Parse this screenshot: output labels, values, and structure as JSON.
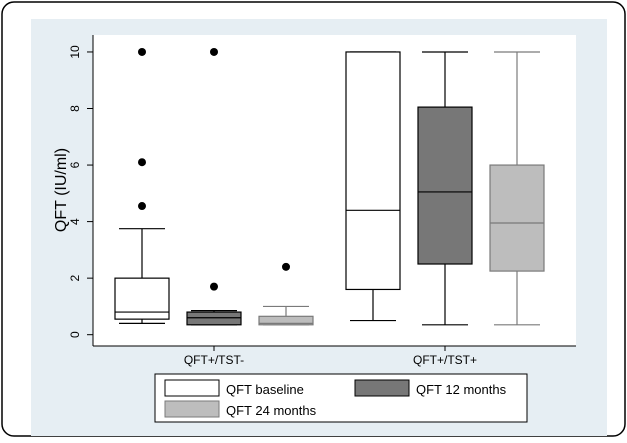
{
  "chart_data": {
    "type": "box",
    "title": "",
    "xlabel": "",
    "ylabel": "QFT (IU/ml)",
    "ylim": [
      -0.4,
      10.6
    ],
    "yticks": [
      0,
      2,
      4,
      6,
      8,
      10
    ],
    "grid": false,
    "legend_position": "bottom",
    "groups": [
      "QFT+/TST-",
      "QFT+/TST+"
    ],
    "series": [
      {
        "name": "QFT baseline",
        "color": "#ffffff",
        "line_color": "#000000",
        "boxes": [
          {
            "group": "QFT+/TST-",
            "min": 0.4,
            "q1": 0.55,
            "median": 0.8,
            "q3": 2.0,
            "max": 3.75,
            "outliers": [
              4.55,
              6.1,
              10.0
            ]
          },
          {
            "group": "QFT+/TST+",
            "min": 0.5,
            "q1": 1.6,
            "median": 4.4,
            "q3": 10.0,
            "max": 10.0,
            "outliers": []
          }
        ]
      },
      {
        "name": "QFT 12 months",
        "color": "#777777",
        "line_color": "#000000",
        "boxes": [
          {
            "group": "QFT+/TST-",
            "min": 0.35,
            "q1": 0.35,
            "median": 0.6,
            "q3": 0.8,
            "max": 0.85,
            "outliers": [
              1.7,
              10.0
            ]
          },
          {
            "group": "QFT+/TST+",
            "min": 0.35,
            "q1": 2.5,
            "median": 5.05,
            "q3": 8.05,
            "max": 10.0,
            "outliers": []
          }
        ]
      },
      {
        "name": "QFT 24 months",
        "color": "#bdbdbd",
        "line_color": "#7a7a7a",
        "boxes": [
          {
            "group": "QFT+/TST-",
            "min": 0.35,
            "q1": 0.35,
            "median": 0.4,
            "q3": 0.65,
            "max": 1.0,
            "outliers": [
              2.4
            ]
          },
          {
            "group": "QFT+/TST+",
            "min": 0.35,
            "q1": 2.25,
            "median": 3.95,
            "q3": 6.0,
            "max": 10.0,
            "outliers": []
          }
        ]
      }
    ]
  }
}
